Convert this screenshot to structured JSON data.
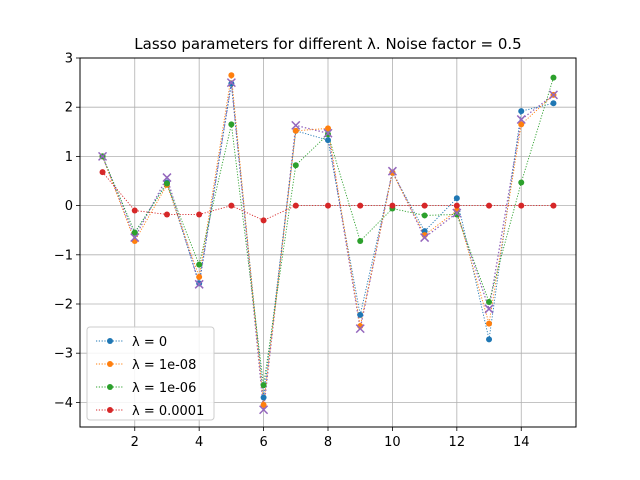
{
  "chart_data": {
    "type": "line",
    "title": "Lasso parameters for different λ. Noise factor = 0.5",
    "xlabel": "",
    "ylabel": "",
    "xlim": [
      0.3,
      15.7
    ],
    "ylim": [
      -4.5,
      3
    ],
    "xticks": [
      2,
      4,
      6,
      8,
      10,
      12,
      14
    ],
    "yticks": [
      -4,
      -3,
      -2,
      -1,
      0,
      1,
      2,
      3
    ],
    "xtick_labels": [
      "2",
      "4",
      "6",
      "8",
      "10",
      "12",
      "14"
    ],
    "ytick_labels": [
      "−4",
      "−3",
      "−2",
      "−1",
      "0",
      "1",
      "2",
      "3"
    ],
    "grid": true,
    "legend_position": "lower-left",
    "x": [
      1,
      2,
      3,
      4,
      5,
      6,
      7,
      8,
      9,
      10,
      11,
      12,
      13,
      14,
      15
    ],
    "series": [
      {
        "name": "λ = 0",
        "color": "#1f77b4",
        "marker": "dot",
        "values": [
          1.0,
          -0.55,
          0.47,
          -1.58,
          2.48,
          -3.9,
          1.52,
          1.33,
          -2.22,
          0.67,
          -0.52,
          0.15,
          -2.72,
          1.92,
          2.08
        ]
      },
      {
        "name": "λ = 1e-08",
        "color": "#ff7f0e",
        "marker": "dot",
        "values": [
          1.0,
          -0.72,
          0.42,
          -1.45,
          2.65,
          -4.05,
          1.52,
          1.57,
          -2.45,
          0.67,
          -0.6,
          -0.1,
          -2.4,
          1.65,
          2.25
        ]
      },
      {
        "name": "λ = 1e-06",
        "color": "#2ca02c",
        "marker": "dot",
        "values": [
          1.0,
          -0.55,
          0.45,
          -1.2,
          1.65,
          -3.65,
          0.82,
          1.45,
          -0.72,
          -0.06,
          -0.2,
          -0.18,
          -1.96,
          0.47,
          2.6
        ]
      },
      {
        "name": "λ = 0.0001",
        "color": "#d62728",
        "marker": "dot",
        "values": [
          0.68,
          -0.1,
          -0.18,
          -0.18,
          0.0,
          -0.3,
          0.0,
          0.0,
          0.0,
          0.0,
          0.0,
          0.0,
          0.0,
          0.0,
          0.0
        ]
      }
    ],
    "true_params": {
      "color": "#9467bd",
      "marker": "x",
      "values": [
        1.0,
        -0.65,
        0.57,
        -1.6,
        2.5,
        -4.15,
        1.63,
        1.47,
        -2.5,
        0.7,
        -0.65,
        -0.15,
        -2.1,
        1.75,
        2.25
      ]
    }
  }
}
